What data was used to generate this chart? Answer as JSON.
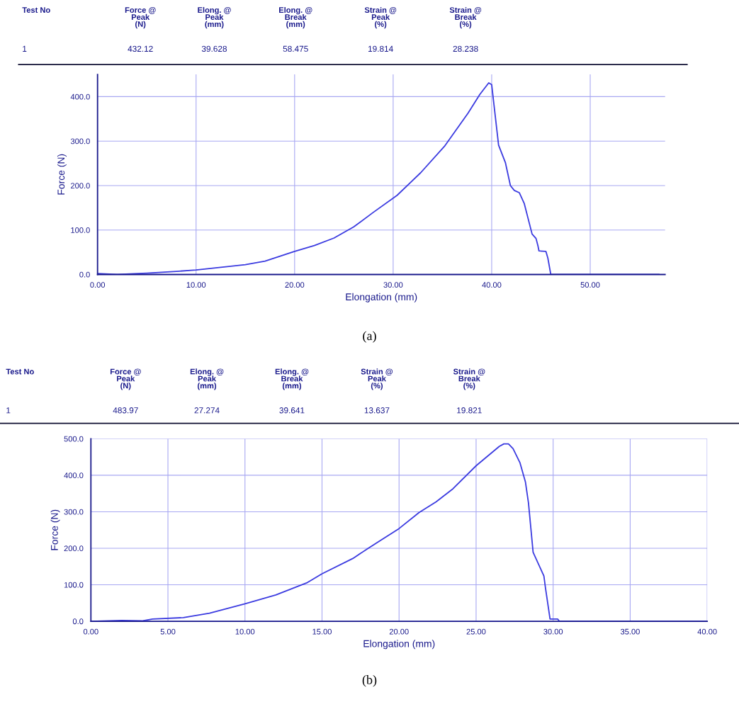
{
  "chart_data": [
    {
      "type": "line",
      "xlabel": "Elongation (mm)",
      "ylabel": "Force (N)",
      "annotations": [
        "Test No",
        "Force @\nPeak\n(N)",
        "Elong. @\nPeak\n(mm)",
        "Elong. @\nBreak\n(mm)",
        "Strain @\nPeak\n(%)",
        "Strain @\nBreak\n(%)",
        "1",
        "432.12",
        "39.628",
        "58.475",
        "19.814",
        "28.238",
        "(a)"
      ],
      "x": [
        0,
        2,
        5,
        8,
        10,
        12,
        15,
        17,
        20,
        22,
        24,
        26,
        28,
        30.4,
        32.8,
        35.2,
        37.6,
        38.8,
        39.7,
        40.0,
        40.7,
        41.4,
        41.9,
        42.3,
        42.8,
        43.3,
        44.1,
        44.5,
        44.7,
        44.8,
        45.5,
        45.7,
        46.0,
        57.0
      ],
      "series": [
        {
          "color": "#3b3be0",
          "values": [
            2,
            0,
            3,
            7,
            10,
            15,
            22,
            30,
            52,
            65,
            82,
            107,
            140,
            178,
            229,
            288,
            363,
            405,
            431,
            427,
            291,
            251,
            200,
            189,
            184,
            160,
            91,
            81,
            64,
            53,
            52,
            37,
            0,
            0
          ]
        }
      ],
      "xlim": [
        0,
        57.6
      ],
      "ylim": [
        0,
        450
      ],
      "xticks": [
        {
          "value": 0,
          "label": "0.00"
        },
        {
          "value": 10,
          "label": "10.00"
        },
        {
          "value": 20,
          "label": "20.00"
        },
        {
          "value": 30,
          "label": "30.00"
        },
        {
          "value": 40,
          "label": "40.00"
        },
        {
          "value": 50,
          "label": "50.00"
        }
      ],
      "yticks": [
        {
          "value": 0,
          "label": "0.0"
        },
        {
          "value": 100,
          "label": "100.0"
        },
        {
          "value": 200,
          "label": "200.0"
        },
        {
          "value": 300,
          "label": "300.0"
        },
        {
          "value": 400,
          "label": "400.0"
        }
      ],
      "grid": true,
      "marker": "none",
      "line_style": "solid"
    },
    {
      "type": "line",
      "xlabel": "Elongation (mm)",
      "ylabel": "Force (N)",
      "annotations": [
        "Test No",
        "Force @\nPeak\n(N)",
        "Elong. @\nPeak\n(mm)",
        "Elong. @\nBreak\n(mm)",
        "Strain @\nPeak\n(%)",
        "Strain @\nBreak\n(%)",
        "1",
        "483.97",
        "27.274",
        "39.641",
        "13.637",
        "19.821",
        "(b)"
      ],
      "x": [
        0,
        2,
        3.3,
        4,
        6,
        7.7,
        10,
        12,
        14,
        15,
        17,
        18,
        20,
        21.3,
        22.4,
        23.5,
        25,
        26.5,
        26.8,
        27.1,
        27.4,
        27.85,
        28.2,
        28.4,
        28.7,
        29.4,
        29.5,
        29.8,
        30.3,
        30.4,
        40
      ],
      "series": [
        {
          "color": "#3b3be0",
          "values": [
            0,
            2,
            1,
            6,
            10,
            22,
            48,
            72,
            105,
            130,
            172,
            200,
            254,
            298,
            327,
            363,
            426,
            479,
            486,
            486,
            473,
            434,
            382,
            324,
            189,
            124,
            92,
            6,
            6,
            0,
            0
          ]
        }
      ],
      "xlim": [
        0,
        40
      ],
      "ylim": [
        0,
        500
      ],
      "xticks": [
        {
          "value": 0,
          "label": "0.00"
        },
        {
          "value": 5,
          "label": "5.00"
        },
        {
          "value": 10,
          "label": "10.00"
        },
        {
          "value": 15,
          "label": "15.00"
        },
        {
          "value": 20,
          "label": "20.00"
        },
        {
          "value": 25,
          "label": "25.00"
        },
        {
          "value": 30,
          "label": "30.00"
        },
        {
          "value": 35,
          "label": "35.00"
        },
        {
          "value": 40,
          "label": "40.00"
        }
      ],
      "yticks": [
        {
          "value": 0,
          "label": "0.0"
        },
        {
          "value": 100,
          "label": "100.0"
        },
        {
          "value": 200,
          "label": "200.0"
        },
        {
          "value": 300,
          "label": "300.0"
        },
        {
          "value": 400,
          "label": "400.0"
        },
        {
          "value": 500,
          "label": "500.0"
        }
      ],
      "grid": true,
      "marker": "none",
      "line_style": "solid"
    }
  ]
}
